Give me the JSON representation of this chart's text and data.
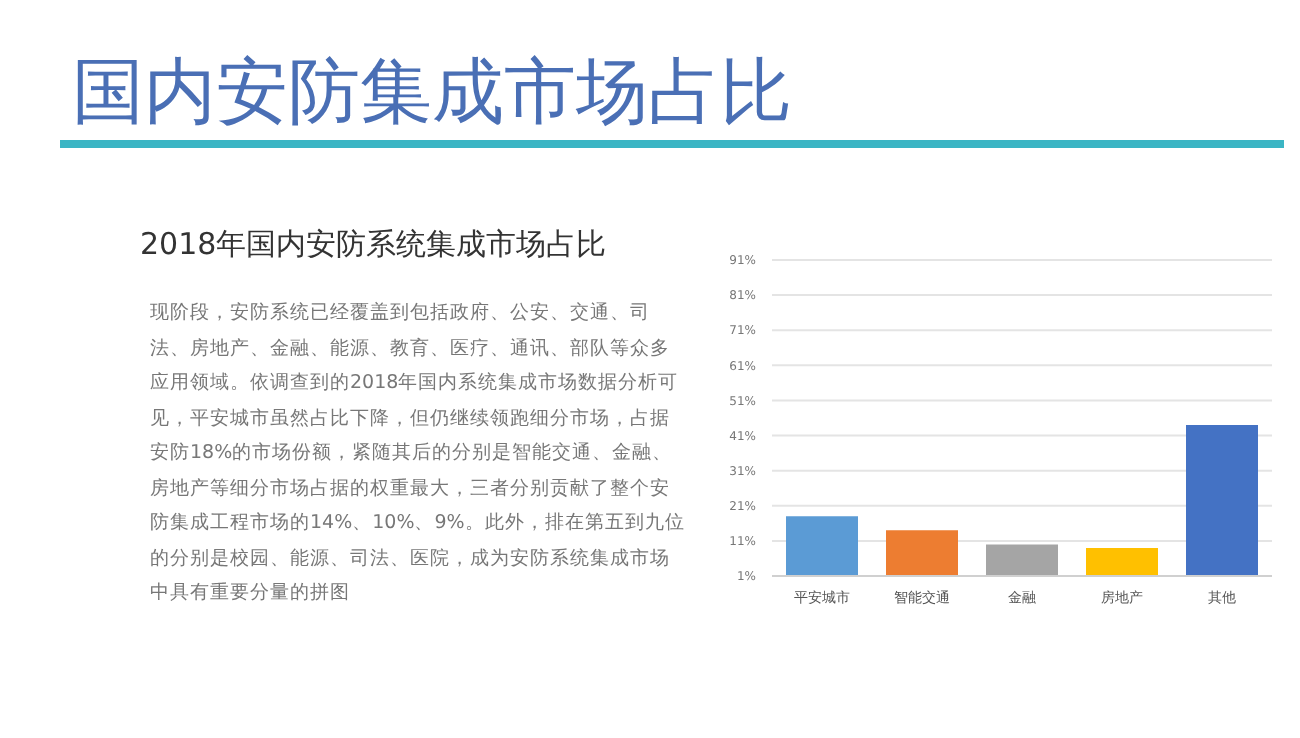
{
  "chart_data": {
    "type": "bar",
    "title": "国内安防集成市场占比",
    "subtitle": "2018年国内安防系统集成市场占比",
    "annotations": [
      "现阶段，安防系统已经覆盖到包括政府、公安、交通、司法、房地产、金融、能源、教育、医疗、通讯、部队等众多应用领域。依调查到的2018年国内系统集成市场数据分析可见，平安城市虽然占比下降，但仍继续领跑细分市场，占据安防18%的市场份额，紧随其后的分别是智能交通、金融、房地产等细分市场占据的权重最大，三者分别贡献了整个安防集成工程市场的14%、10%、9%。此外，排在第五到九位的分别是校园、能源、司法、医院，成为安防系统集成市场中具有重要分量的拼图"
    ],
    "categories": [
      "平安城市",
      "智能交通",
      "金融",
      "房地产",
      "其他"
    ],
    "values": [
      18,
      14,
      10,
      9,
      44
    ],
    "colors": [
      "#5b9bd5",
      "#ed7d31",
      "#a5a5a5",
      "#ffc000",
      "#4472c4"
    ],
    "ylim": [
      1,
      91
    ],
    "yticks": [
      {
        "value": 1,
        "label": "1%"
      },
      {
        "value": 11,
        "label": "11%"
      },
      {
        "value": 21,
        "label": "21%"
      },
      {
        "value": 31,
        "label": "31%"
      },
      {
        "value": 41,
        "label": "41%"
      },
      {
        "value": 51,
        "label": "51%"
      },
      {
        "value": 61,
        "label": "61%"
      },
      {
        "value": 71,
        "label": "71%"
      },
      {
        "value": 81,
        "label": "81%"
      },
      {
        "value": 91,
        "label": "91%"
      }
    ],
    "grid": "y",
    "legend": false
  }
}
